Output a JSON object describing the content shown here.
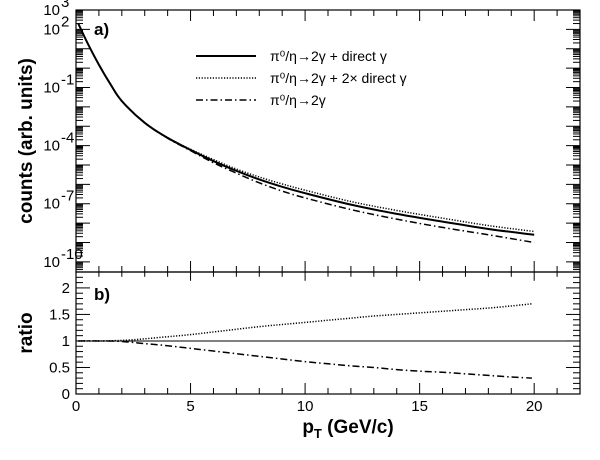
{
  "chart_data": [
    {
      "type": "line",
      "panel_label": "a)",
      "ylabel": "counts (arb. units)",
      "yscale": "log",
      "xlim": [
        0,
        22
      ],
      "ylim": [
        3e-11,
        1000
      ],
      "legend_placement": "top-center",
      "y_tick_labels": [
        {
          "value": 1000,
          "base": "10",
          "exp": "3"
        },
        {
          "value": 100,
          "base": "10",
          "exp": "2"
        },
        {
          "value": 0.1,
          "base": "10",
          "exp": "-1"
        },
        {
          "value": 0.0001,
          "base": "10",
          "exp": "-4"
        },
        {
          "value": 1e-07,
          "base": "10",
          "exp": "-7"
        },
        {
          "value": 1e-10,
          "base": "10",
          "exp": "-10"
        }
      ],
      "series": [
        {
          "name": "π⁰/η→2γ + direct γ",
          "style": "solid",
          "x": [
            0.1,
            0.5,
            1,
            1.5,
            2,
            3,
            4,
            5,
            6,
            7,
            8,
            9,
            10,
            12,
            14,
            16,
            18,
            20
          ],
          "y": [
            200,
            20,
            1.5,
            0.15,
            0.02,
            0.0015,
            0.00025,
            6e-05,
            1.6e-05,
            5e-06,
            1.8e-06,
            7.5e-07,
            3.5e-07,
            9e-08,
            3e-08,
            1.2e-08,
            5e-09,
            2.5e-09
          ]
        },
        {
          "name": "π⁰/η→2γ + 2× direct γ",
          "style": "dotted",
          "x": [
            0.1,
            0.5,
            1,
            1.5,
            2,
            3,
            4,
            5,
            6,
            7,
            8,
            9,
            10,
            12,
            14,
            16,
            18,
            20
          ],
          "y": [
            200,
            20,
            1.5,
            0.15,
            0.02,
            0.0015,
            0.00026,
            6.5e-05,
            1.9e-05,
            6.2e-06,
            2.4e-06,
            1.05e-06,
            5e-07,
            1.3e-07,
            4.5e-08,
            1.8e-08,
            7.5e-09,
            3.7e-09
          ]
        },
        {
          "name": "π⁰/η→2γ",
          "style": "dashdot",
          "x": [
            0.1,
            0.5,
            1,
            1.5,
            2,
            3,
            4,
            5,
            6,
            7,
            8,
            9,
            10,
            12,
            14,
            16,
            18,
            20
          ],
          "y": [
            200,
            20,
            1.5,
            0.15,
            0.02,
            0.0015,
            0.00024,
            5.5e-05,
            1.3e-05,
            3.8e-06,
            1.2e-06,
            4.5e-07,
            2e-07,
            5e-08,
            1.6e-08,
            6e-09,
            2.5e-09,
            1e-09
          ]
        }
      ]
    },
    {
      "type": "line",
      "panel_label": "b)",
      "xlabel_main": "p",
      "xlabel_sub": "T",
      "xlabel_rest": " (GeV/c)",
      "ylabel": "ratio",
      "xlim": [
        0,
        22
      ],
      "ylim": [
        0,
        2.3
      ],
      "x_tick_labels": [
        "0",
        "5",
        "10",
        "15",
        "20"
      ],
      "x_ticks": [
        0,
        5,
        10,
        15,
        20
      ],
      "y_tick_labels": [
        "0",
        "0.5",
        "1",
        "1.5",
        "2"
      ],
      "y_ticks": [
        0,
        0.5,
        1,
        1.5,
        2
      ],
      "reference_line": 1,
      "series": [
        {
          "style": "dotted",
          "x": [
            0.1,
            1,
            2,
            3,
            4,
            5,
            6,
            7,
            8,
            9,
            10,
            11,
            12,
            13,
            14,
            15,
            16,
            17,
            18,
            19,
            19.9
          ],
          "y": [
            1,
            1,
            1.01,
            1.04,
            1.08,
            1.12,
            1.17,
            1.22,
            1.27,
            1.31,
            1.35,
            1.39,
            1.43,
            1.47,
            1.5,
            1.53,
            1.56,
            1.59,
            1.62,
            1.66,
            1.7
          ]
        },
        {
          "style": "dashdot",
          "x": [
            0.1,
            1,
            2,
            3,
            4,
            5,
            6,
            7,
            8,
            9,
            10,
            11,
            12,
            13,
            14,
            15,
            16,
            17,
            18,
            19,
            19.9
          ],
          "y": [
            1,
            1,
            0.99,
            0.95,
            0.91,
            0.86,
            0.81,
            0.76,
            0.71,
            0.66,
            0.61,
            0.57,
            0.53,
            0.5,
            0.46,
            0.43,
            0.41,
            0.38,
            0.35,
            0.32,
            0.3
          ]
        }
      ]
    }
  ]
}
